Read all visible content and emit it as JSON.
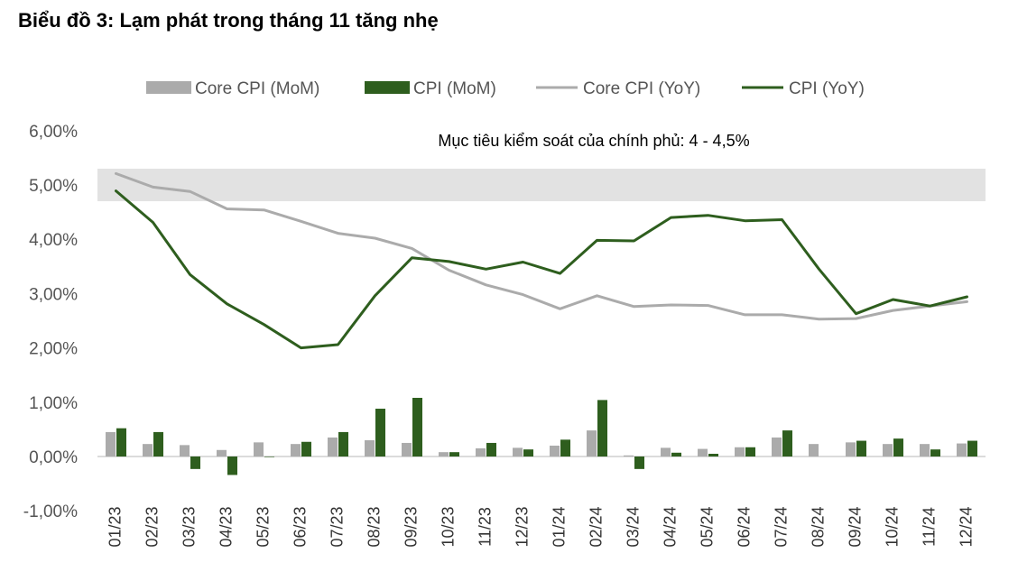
{
  "title": "Biểu đồ 3: Lạm phát trong tháng 11 tăng nhẹ",
  "chart_data": {
    "type": "bar",
    "categories": [
      "01/23",
      "02/23",
      "03/23",
      "04/23",
      "05/23",
      "06/23",
      "07/23",
      "08/23",
      "09/23",
      "10/23",
      "11/23",
      "12/23",
      "01/24",
      "02/24",
      "03/24",
      "04/24",
      "05/24",
      "06/24",
      "07/24",
      "08/24",
      "09/24",
      "10/24",
      "11/24",
      "12/24"
    ],
    "y_ticks": [
      "-1,00%",
      "0,00%",
      "1,00%",
      "2,00%",
      "3,00%",
      "4,00%",
      "5,00%",
      "6,00%"
    ],
    "ylim": [
      -1,
      6
    ],
    "annotation": "Mục tiêu kiểm soát của chính phủ: 4 - 4,5%",
    "target_band": [
      4.7,
      5.3
    ],
    "legend_position": "top",
    "grid": false,
    "series": [
      {
        "name": "Core CPI (MoM)",
        "kind": "bar",
        "color": "#ababab",
        "values": [
          0.45,
          0.23,
          0.21,
          0.12,
          0.26,
          0.23,
          0.35,
          0.3,
          0.25,
          0.08,
          0.15,
          0.16,
          0.2,
          0.48,
          0.02,
          0.16,
          0.14,
          0.17,
          0.35,
          0.23,
          0.26,
          0.23,
          0.23,
          0.24
        ]
      },
      {
        "name": "CPI (MoM)",
        "kind": "bar",
        "color": "#2e5e1e",
        "values": [
          0.52,
          0.45,
          -0.23,
          -0.34,
          -0.01,
          0.27,
          0.45,
          0.88,
          1.08,
          0.08,
          0.25,
          0.13,
          0.31,
          1.04,
          -0.23,
          0.07,
          0.05,
          0.17,
          0.48,
          0.0,
          0.29,
          0.33,
          0.13,
          0.29
        ]
      },
      {
        "name": "Core CPI (YoY)",
        "kind": "line",
        "color": "#ababab",
        "values": [
          5.21,
          4.96,
          4.88,
          4.56,
          4.54,
          4.33,
          4.11,
          4.02,
          3.83,
          3.43,
          3.16,
          2.98,
          2.72,
          2.96,
          2.76,
          2.79,
          2.78,
          2.61,
          2.61,
          2.53,
          2.54,
          2.69,
          2.77,
          2.85
        ]
      },
      {
        "name": "CPI (YoY)",
        "kind": "line",
        "color": "#2e5e1e",
        "values": [
          4.89,
          4.31,
          3.35,
          2.81,
          2.43,
          2.0,
          2.06,
          2.96,
          3.66,
          3.59,
          3.45,
          3.58,
          3.37,
          3.98,
          3.97,
          4.4,
          4.44,
          4.34,
          4.36,
          3.45,
          2.63,
          2.89,
          2.77,
          2.94
        ]
      }
    ]
  }
}
